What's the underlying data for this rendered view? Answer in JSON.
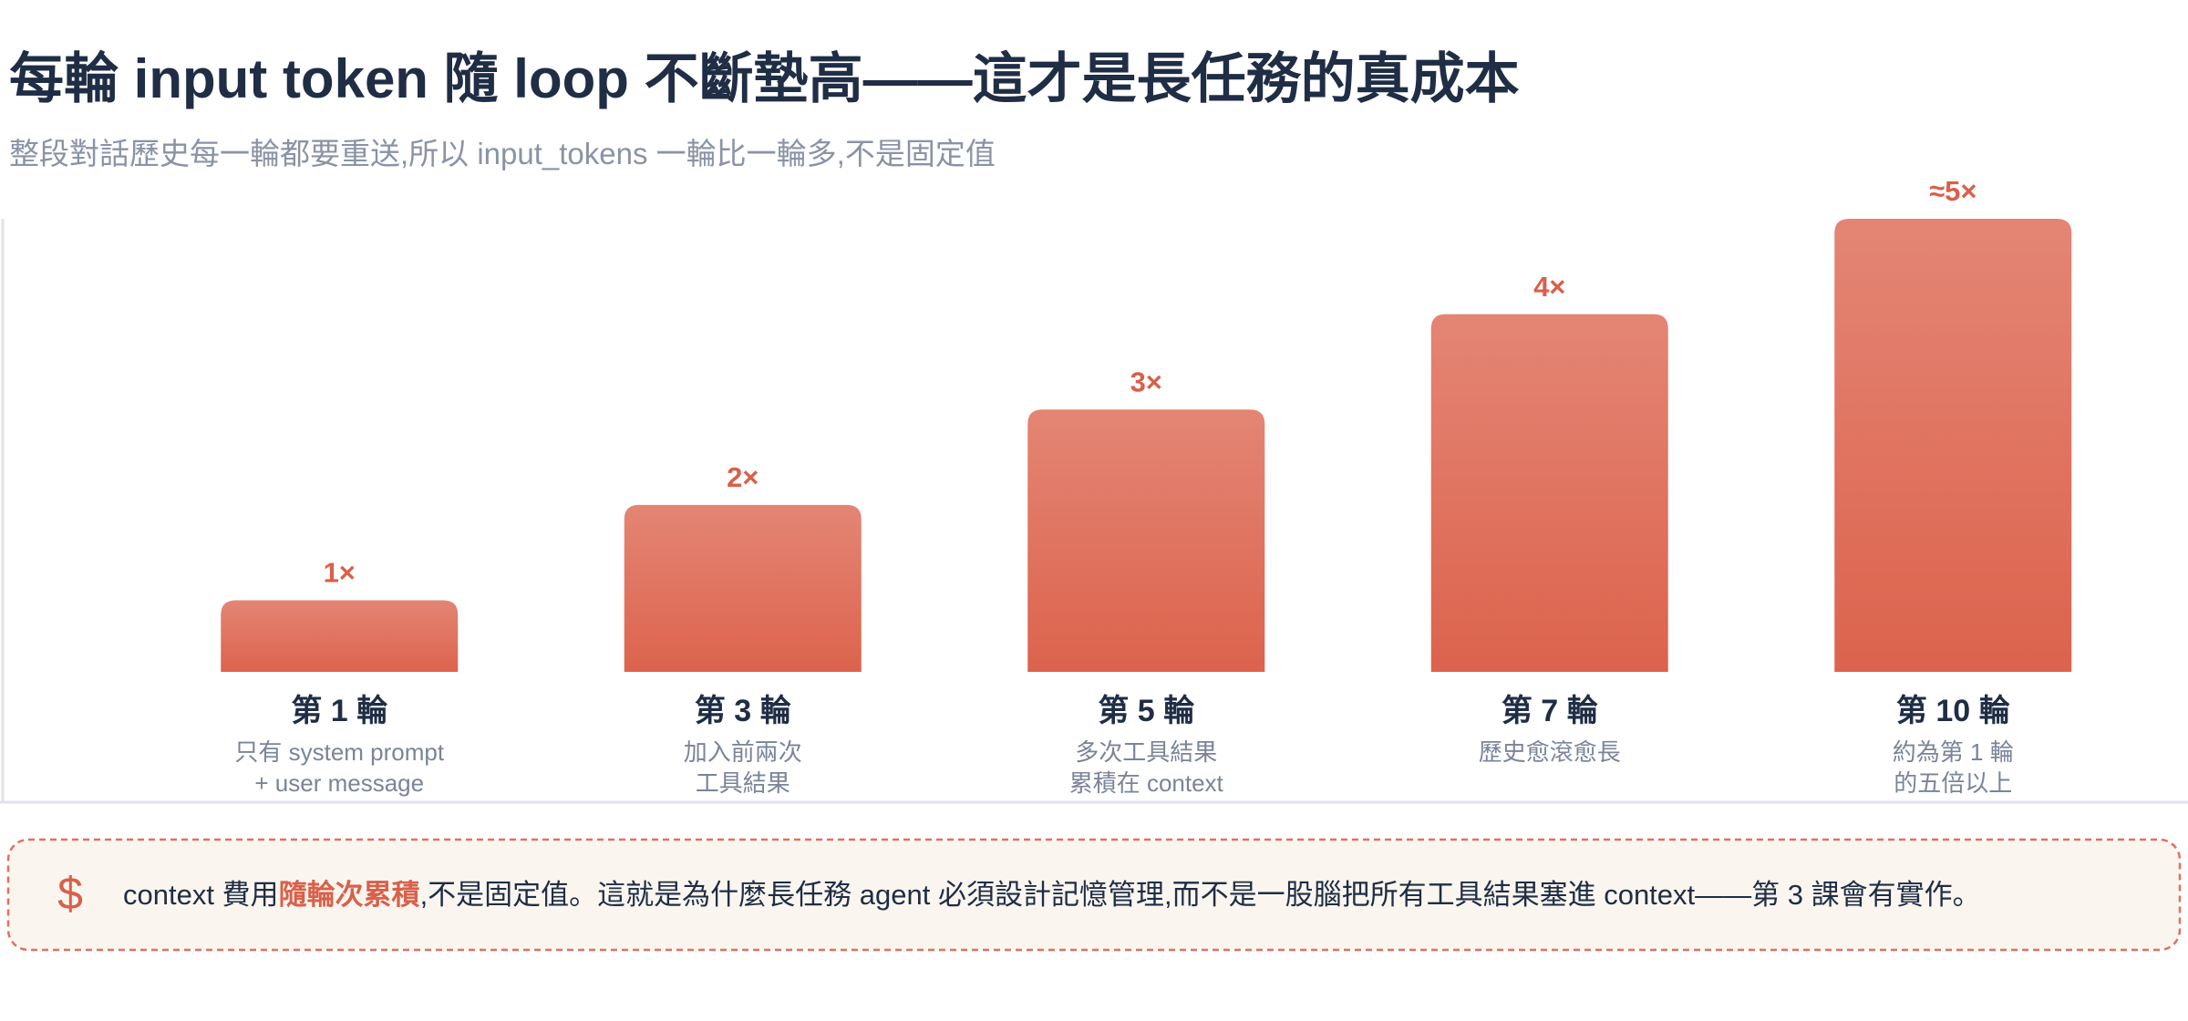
{
  "chart_data": {
    "type": "bar",
    "title": "每輪 input token 隨 loop 不斷墊高——這才是長任務的真成本",
    "subtitle": "整段對話歷史每一輪都要重送,所以 input_tokens 一輪比一輪多,不是固定值",
    "categories": [
      "第 1 輪",
      "第 3 輪",
      "第 5 輪",
      "第 7 輪",
      "第 10 輪"
    ],
    "notes": [
      [
        "只有 system prompt",
        "+ user message"
      ],
      [
        "加入前兩次",
        "工具結果"
      ],
      [
        "多次工具結果",
        "累積在 context"
      ],
      [
        "歷史愈滾愈長"
      ],
      [
        "約為第 1 輪",
        "的五倍以上"
      ]
    ],
    "values": [
      1,
      2,
      3,
      4,
      5
    ],
    "value_labels": [
      "1×",
      "2×",
      "3×",
      "4×",
      "≈5×"
    ],
    "color": "#dc634d",
    "ylim": [
      0.25,
      5
    ]
  },
  "callout": {
    "icon": "$",
    "text": [
      "context 費用",
      "隨輪次累積",
      ",不是固定值。這就是為什麼長任務 agent 必須設計記憶管理,而不是一股腦把所有工具結果塞進 context——第 3 課會有實作。"
    ]
  }
}
